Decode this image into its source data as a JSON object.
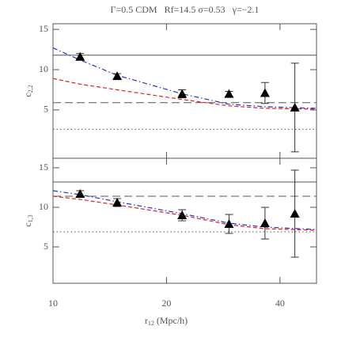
{
  "chart_data": [
    {
      "type": "line",
      "title": "Γ=0.5 CDM   Rf=14.5 σ=0.53   γ=−2.1",
      "ylabel": "c",
      "ylabel_sub": "2,2",
      "xscale": "log",
      "xlim": [
        10,
        50
      ],
      "xticks": [
        10,
        20,
        40
      ],
      "ylim": [
        -1,
        15.7
      ],
      "yticks": [
        5,
        10,
        15
      ],
      "points": {
        "color": "#000000",
        "x": [
          11.8,
          14.8,
          22,
          29.3,
          36.5,
          43.8
        ],
        "values": [
          11.6,
          9.2,
          7.0,
          7.0,
          7.1,
          5.3
        ],
        "errors": [
          0.4,
          0.3,
          0.5,
          0.3,
          1.3,
          5.5
        ]
      },
      "hlines": [
        {
          "value": 11.8,
          "dash": "solid"
        },
        {
          "value": 5.9,
          "dash": "long"
        },
        {
          "value": 2.6,
          "dash": "dot"
        }
      ],
      "curves": [
        {
          "color": "#2233cc",
          "dash": "dashdot",
          "x": [
            10,
            11.8,
            14.8,
            22,
            29.3,
            36.5,
            50
          ],
          "values": [
            12.7,
            11.2,
            9.3,
            7.0,
            5.7,
            5.4,
            5.2
          ]
        },
        {
          "color": "#dd2222",
          "dash": "dash",
          "x": [
            10,
            11.8,
            14.8,
            22,
            29.3,
            36.5,
            50
          ],
          "values": [
            8.9,
            8.2,
            7.5,
            6.3,
            5.5,
            5.2,
            5.1
          ]
        }
      ]
    },
    {
      "type": "line",
      "ylabel": "c",
      "ylabel_sub": "1,3",
      "xlabel": "r",
      "xlabel_sub": "12",
      "xlabel_unit": "(Mpc/h)",
      "xscale": "log",
      "xlim": [
        10,
        50
      ],
      "xticks": [
        10,
        20,
        40
      ],
      "ylim": [
        0.4,
        16.2
      ],
      "yticks": [
        5,
        10,
        15
      ],
      "points": {
        "color": "#000000",
        "x": [
          11.8,
          14.8,
          22,
          29.3,
          36.5,
          43.8
        ],
        "values": [
          11.7,
          10.6,
          9.0,
          7.9,
          8.0,
          9.2
        ],
        "errors": [
          0.4,
          0.5,
          0.7,
          1.2,
          2.0,
          5.5
        ]
      },
      "hlines": [
        {
          "value": 13.2,
          "dash": "solid"
        },
        {
          "value": 11.4,
          "dash": "long"
        },
        {
          "value": 6.9,
          "dash": "dot"
        }
      ],
      "curves": [
        {
          "color": "#2233cc",
          "dash": "dashdot",
          "x": [
            10,
            11.8,
            14.8,
            22,
            29.3,
            36.5,
            50
          ],
          "values": [
            12.1,
            11.6,
            10.7,
            9.2,
            8.0,
            7.5,
            7.2
          ]
        },
        {
          "color": "#dd2222",
          "dash": "dash",
          "x": [
            10,
            11.8,
            14.8,
            22,
            29.3,
            36.5,
            50
          ],
          "values": [
            11.4,
            11.0,
            10.3,
            9.0,
            7.8,
            7.3,
            7.1
          ]
        }
      ]
    }
  ]
}
